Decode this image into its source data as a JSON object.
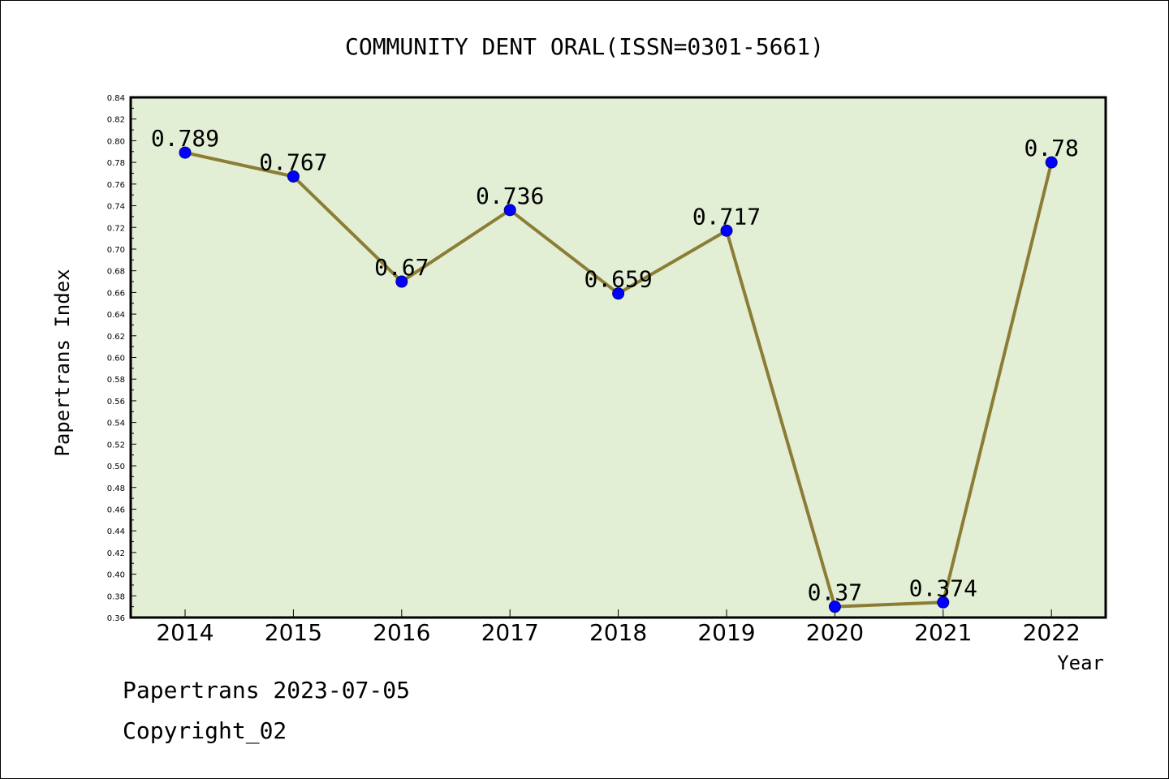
{
  "chart_data": {
    "type": "line",
    "title": "COMMUNITY DENT ORAL(ISSN=0301-5661)",
    "xlabel": "Year",
    "ylabel": "Papertrans Index",
    "categories": [
      "2014",
      "2015",
      "2016",
      "2017",
      "2018",
      "2019",
      "2020",
      "2021",
      "2022"
    ],
    "series": [
      {
        "values": [
          0.789,
          0.767,
          0.67,
          0.736,
          0.659,
          0.717,
          0.37,
          0.374,
          0.78
        ],
        "data_labels": [
          "0.789",
          "0.767",
          "0.67",
          "0.736",
          "0.659",
          "0.717",
          "0.37",
          "0.374",
          "0.78"
        ]
      }
    ],
    "ylim": [
      0.36,
      0.84
    ],
    "yticks": [
      "0.36",
      "0.38",
      "0.40",
      "0.42",
      "0.44",
      "0.46",
      "0.48",
      "0.50",
      "0.52",
      "0.54",
      "0.56",
      "0.58",
      "0.60",
      "0.62",
      "0.64",
      "0.66",
      "0.68",
      "0.70",
      "0.72",
      "0.74",
      "0.76",
      "0.78",
      "0.80",
      "0.82",
      "0.84"
    ],
    "grid": false,
    "colors": {
      "plot_background": "#e2efd5",
      "line": "#8b7d35",
      "marker_fill": "#0000ff",
      "marker_stroke": "#00008b"
    }
  },
  "footer": {
    "line1": "Papertrans 2023-07-05",
    "line2": "Copyright_02"
  }
}
